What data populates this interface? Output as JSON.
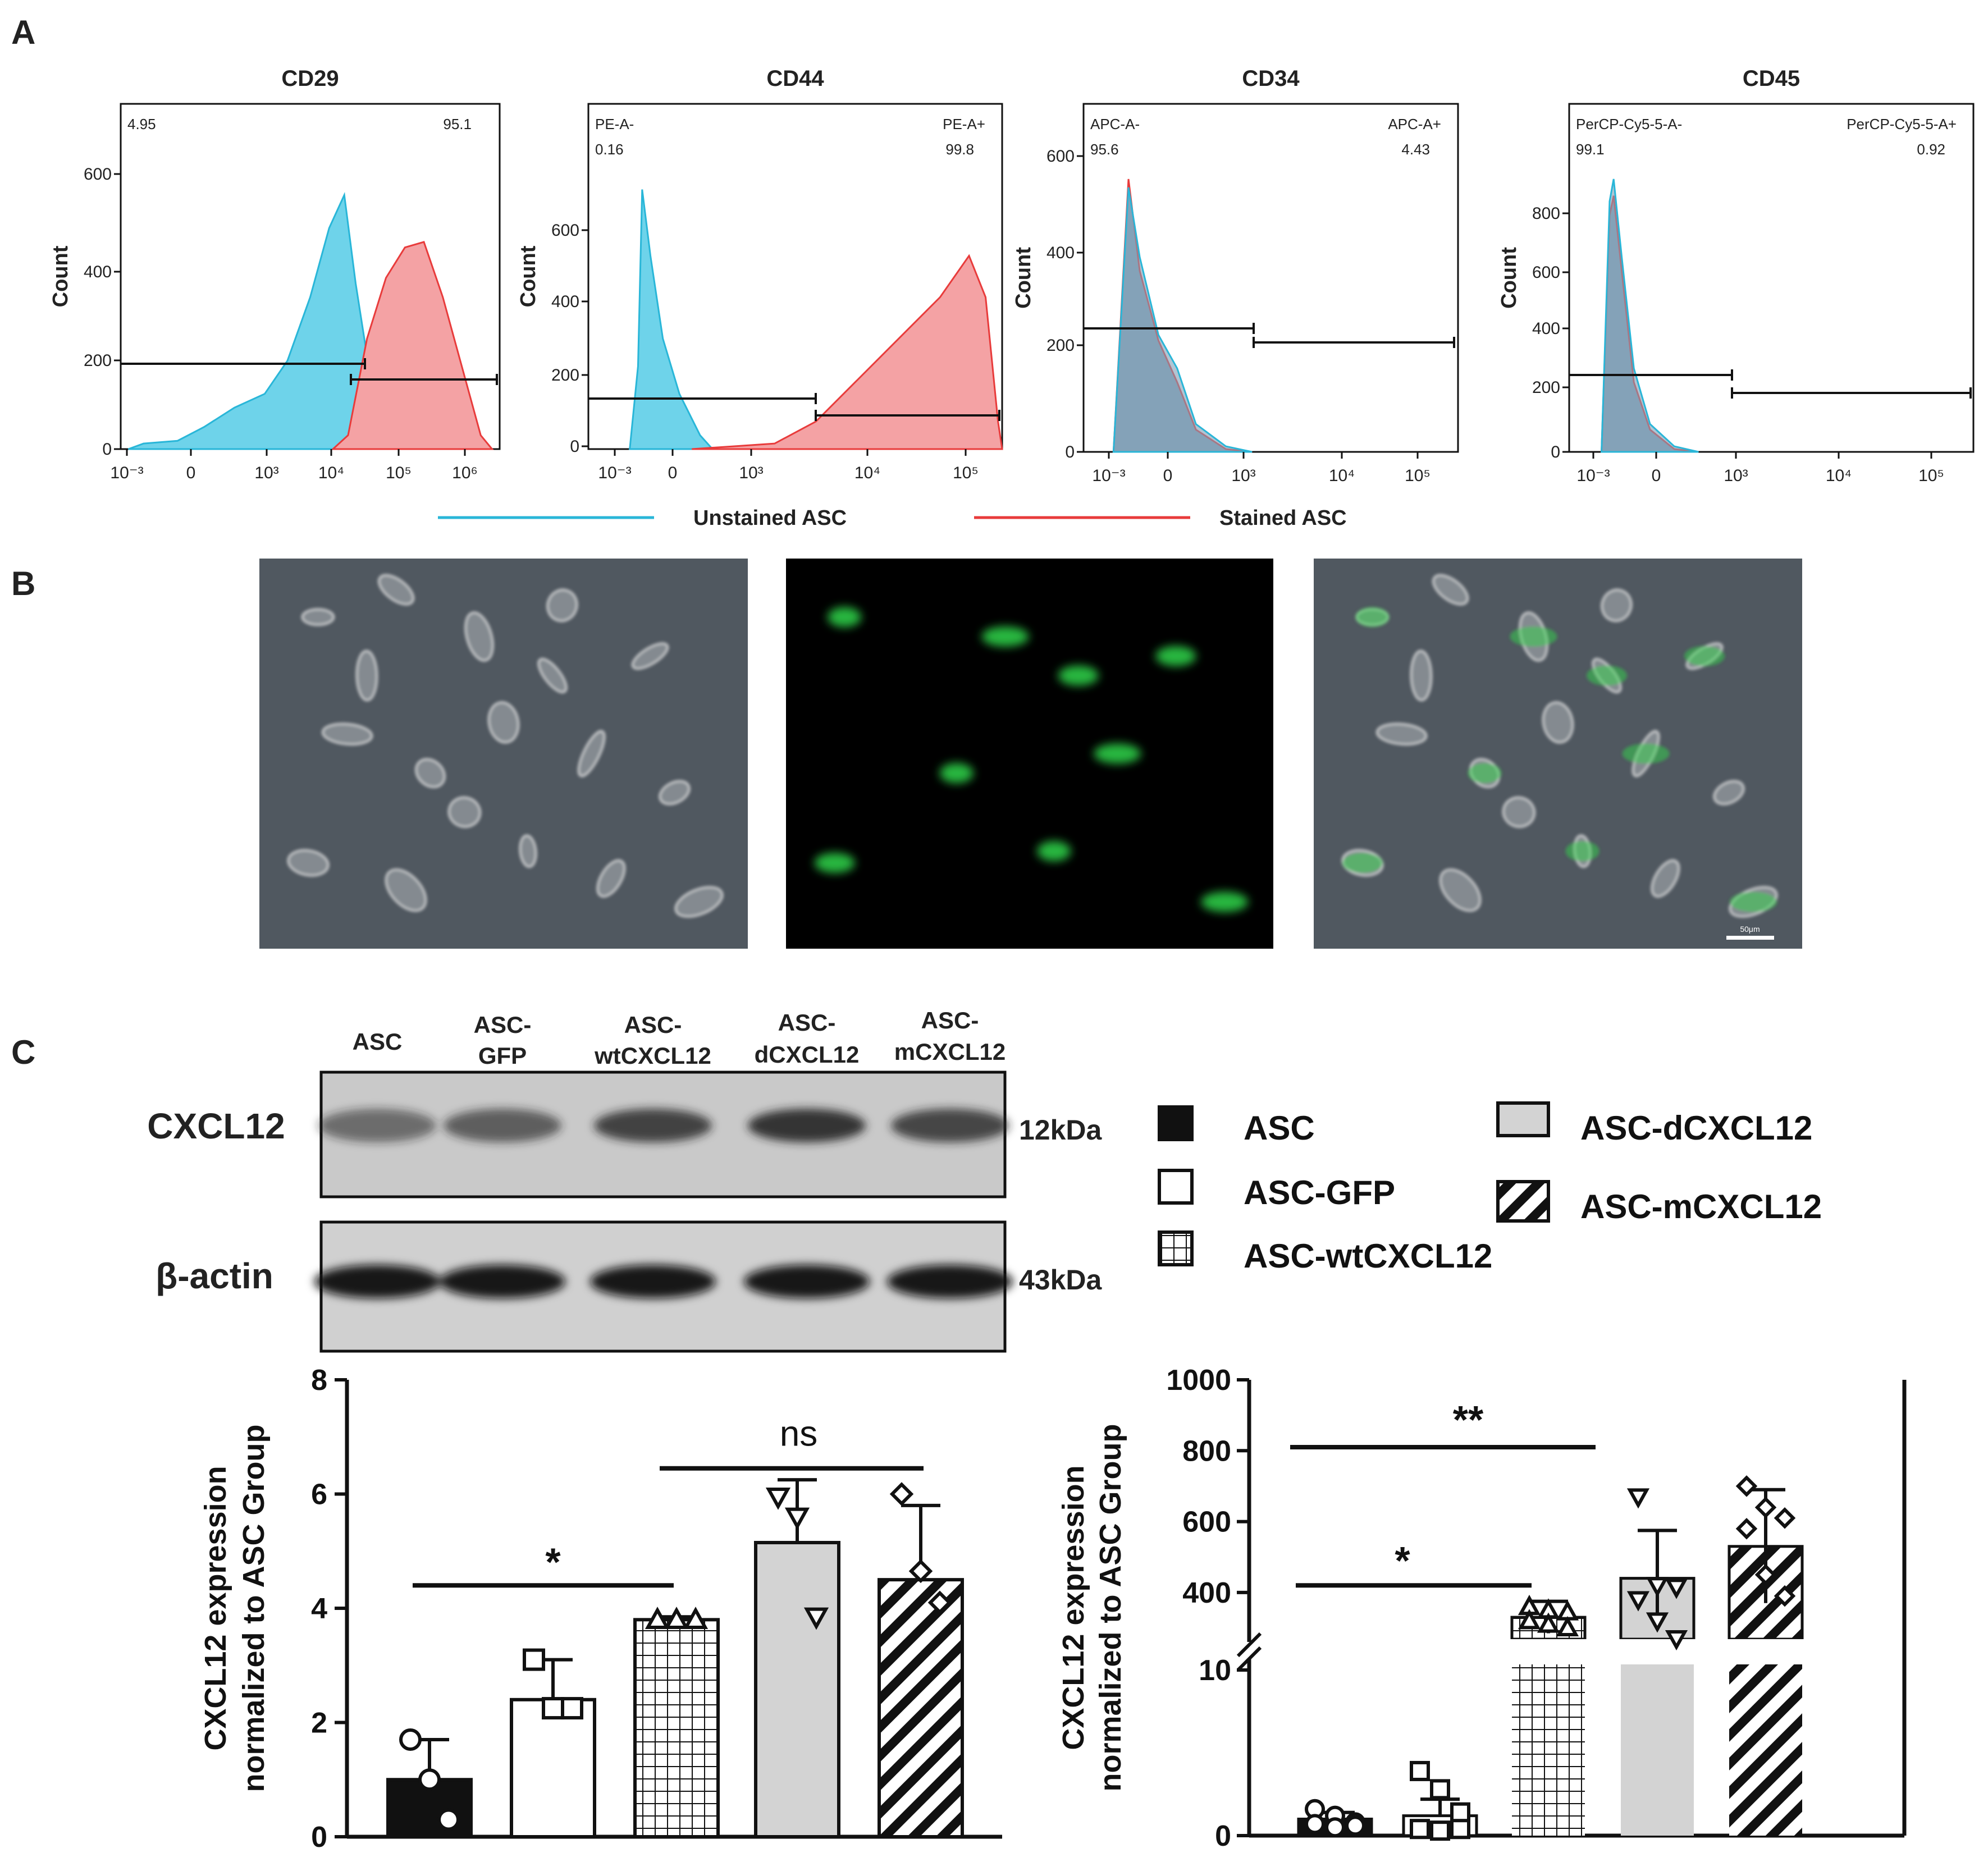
{
  "panels": {
    "A": "A",
    "B": "B",
    "C": "C"
  },
  "colors": {
    "unstained": "#29b6d8",
    "stained": "#e83b3b",
    "stained_fill": "#f4a2a4",
    "unstained_fill": "#6ed3ea",
    "overlap_fill": "#7f9fb5",
    "bar_gray": "#d3d3d3"
  },
  "flow": {
    "legend": {
      "unstained": "Unstained ASC",
      "stained": "Stained ASC"
    },
    "ylabel": "Count",
    "x_ticks": [
      "10⁻³",
      "0",
      "10³",
      "10⁴",
      "10⁵",
      "10⁶"
    ],
    "histograms": [
      {
        "title": "CD29",
        "y_ticks": [
          "0",
          "200",
          "400",
          "600"
        ],
        "neg_label": "",
        "pos_label": "",
        "neg_value": "4.95",
        "pos_value": "95.1"
      },
      {
        "title": "CD44",
        "y_ticks": [
          "0",
          "200",
          "400",
          "600"
        ],
        "neg_label": "PE-A-",
        "pos_label": "PE-A+",
        "neg_value": "0.16",
        "pos_value": "99.8"
      },
      {
        "title": "CD34",
        "y_ticks": [
          "0",
          "200",
          "400",
          "600"
        ],
        "neg_label": "APC-A-",
        "pos_label": "APC-A+",
        "neg_value": "95.6",
        "pos_value": "4.43"
      },
      {
        "title": "CD45",
        "y_ticks": [
          "0",
          "200",
          "400",
          "600",
          "800"
        ],
        "neg_label": "PerCP-Cy5-5-A-",
        "pos_label": "PerCP-Cy5-5-A+",
        "neg_value": "99.1",
        "pos_value": "0.92"
      }
    ]
  },
  "micro": {
    "scale_bar": "50μm"
  },
  "western": {
    "lanes": [
      {
        "line1": "ASC",
        "line2": ""
      },
      {
        "line1": "ASC-",
        "line2": "GFP"
      },
      {
        "line1": "ASC-",
        "line2": "wtCXCL12"
      },
      {
        "line1": "ASC-",
        "line2": "dCXCL12"
      },
      {
        "line1": "ASC-",
        "line2": "mCXCL12"
      }
    ],
    "proteins": [
      {
        "name": "CXCL12",
        "kda": "12kDa"
      },
      {
        "name": "β-actin",
        "kda": "43kDa"
      }
    ]
  },
  "bar_legend": [
    "ASC",
    "ASC-GFP",
    "ASC-wtCXCL12",
    "ASC-dCXCL12",
    "ASC-mCXCL12"
  ],
  "chart_data": [
    {
      "type": "bar",
      "categories": [
        "ASC",
        "ASC-GFP",
        "ASC-wtCXCL12",
        "ASC-dCXCL12",
        "ASC-mCXCL12"
      ],
      "values": [
        1.0,
        2.4,
        3.8,
        5.15,
        4.5
      ],
      "errors": [
        0.7,
        0.7,
        0.05,
        1.1,
        1.3
      ],
      "points": [
        [
          1.7,
          1.0,
          0.3
        ],
        [
          3.1,
          2.25,
          2.25
        ],
        [
          3.8,
          3.8,
          3.8
        ],
        [
          5.95,
          5.6,
          3.85
        ],
        [
          6.0,
          4.65,
          4.1
        ]
      ],
      "ylabel": "CXCL12 expression normalized to ASC Group",
      "ylim": [
        0,
        8
      ],
      "yticks": [
        "0",
        "2",
        "4",
        "6",
        "8"
      ],
      "significance": [
        {
          "from": 0,
          "to": 2,
          "label": "*"
        },
        {
          "from": 2,
          "to": 4,
          "label": "ns"
        }
      ]
    },
    {
      "type": "bar",
      "categories": [
        "ASC",
        "ASC-GFP",
        "ASC-wtCXCL12",
        "ASC-dCXCL12",
        "ASC-mCXCL12"
      ],
      "values": [
        1,
        1.2,
        330,
        440,
        530
      ],
      "errors": [
        0.4,
        1.0,
        45,
        135,
        160
      ],
      "points": [
        [
          1.6,
          1.2,
          0.8,
          0.7,
          0.5,
          0.6
        ],
        [
          3.9,
          2.8,
          1.4,
          0.4,
          0.3,
          0.4
        ],
        [
          360,
          350,
          345,
          320,
          310,
          300
        ],
        [
          670,
          420,
          415,
          380,
          320,
          270
        ],
        [
          700,
          640,
          610,
          580,
          450,
          390
        ]
      ],
      "ylabel": "CXCL12 expression normalized to ASC Group",
      "ylim": [
        0,
        1000
      ],
      "axis_break": [
        10,
        300
      ],
      "yticks_lower": [
        "0",
        "10"
      ],
      "yticks_upper": [
        "400",
        "600",
        "800",
        "1000"
      ],
      "significance": [
        {
          "from": 0,
          "to": 2,
          "label": "*"
        },
        {
          "from": 0,
          "to": 3,
          "label": "**"
        }
      ]
    }
  ]
}
